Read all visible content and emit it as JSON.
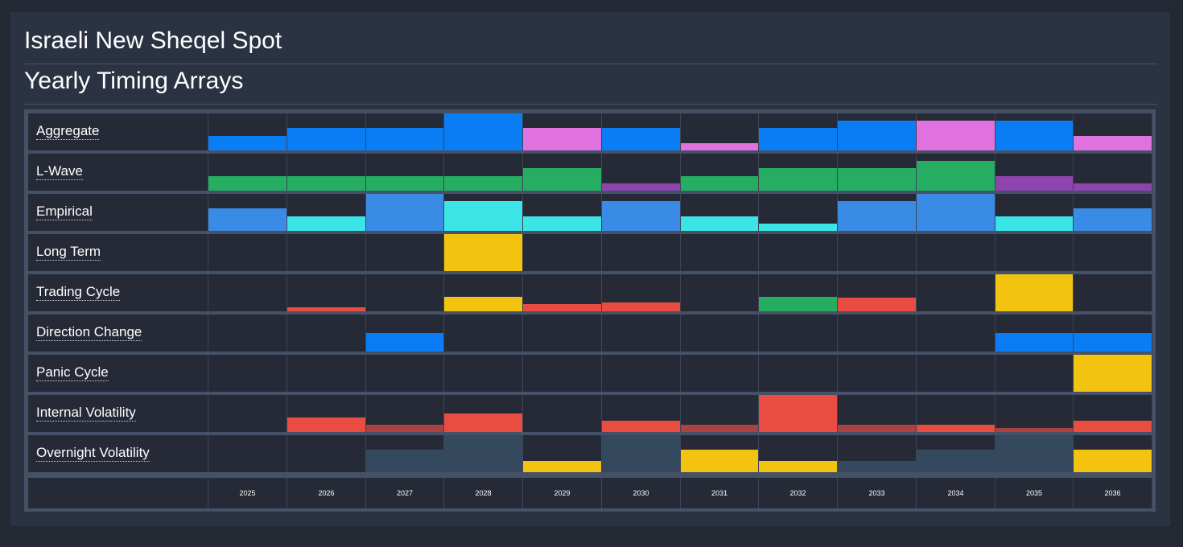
{
  "header": {
    "title": "Israeli New Sheqel Spot",
    "subtitle": "Yearly Timing Arrays"
  },
  "colors": {
    "blue": "#0a7df5",
    "pink": "#df72df",
    "green": "#25ad62",
    "purple": "#8e44ad",
    "mid_blue": "#3a8be5",
    "cyan": "#3ce5e5",
    "yellow": "#f2c30f",
    "red": "#e94c40",
    "dark_red": "#a94240",
    "slate": "#34495e",
    "background": "#252a36"
  },
  "chart_data": {
    "type": "heatmap",
    "title": "Yearly Timing Arrays",
    "x": [
      "2025",
      "2026",
      "2027",
      "2028",
      "2029",
      "2030",
      "2031",
      "2032",
      "2033",
      "2034",
      "2035",
      "2036"
    ],
    "rows": [
      {
        "name": "Aggregate",
        "levels": [
          2,
          3,
          3,
          5,
          3,
          3,
          1,
          3,
          4,
          4,
          4,
          2
        ],
        "colors": [
          "blue",
          "blue",
          "blue",
          "blue",
          "pink",
          "blue",
          "pink",
          "blue",
          "blue",
          "pink",
          "blue",
          "pink"
        ]
      },
      {
        "name": "L-Wave",
        "levels": [
          2,
          2,
          2,
          2,
          3,
          1,
          2,
          3,
          3,
          4,
          2,
          1
        ],
        "colors": [
          "green",
          "green",
          "green",
          "green",
          "green",
          "purple",
          "green",
          "green",
          "green",
          "green",
          "purple",
          "purple"
        ]
      },
      {
        "name": "Empirical",
        "levels": [
          3,
          2,
          5,
          4,
          2,
          4,
          2,
          1,
          4,
          5,
          2,
          3
        ],
        "colors": [
          "mid_blue",
          "cyan",
          "mid_blue",
          "cyan",
          "cyan",
          "mid_blue",
          "cyan",
          "cyan",
          "mid_blue",
          "mid_blue",
          "cyan",
          "mid_blue"
        ]
      },
      {
        "name": "Long Term",
        "levels": [
          0,
          0,
          0,
          5,
          0,
          0,
          0,
          0,
          0,
          0,
          0,
          0
        ],
        "colors": [
          "yellow",
          "yellow",
          "yellow",
          "yellow",
          "yellow",
          "yellow",
          "yellow",
          "yellow",
          "yellow",
          "yellow",
          "yellow",
          "yellow"
        ]
      },
      {
        "name": "Trading Cycle",
        "levels": [
          0,
          0.5,
          0,
          2,
          1,
          1.2,
          0,
          2,
          1.8,
          0,
          5,
          0
        ],
        "colors": [
          "red",
          "red",
          "red",
          "yellow",
          "red",
          "red",
          "red",
          "green",
          "red",
          "red",
          "yellow",
          "red"
        ]
      },
      {
        "name": "Direction Change",
        "levels": [
          0,
          0,
          2.5,
          0,
          0,
          0,
          0,
          0,
          0,
          0,
          2.5,
          2.5
        ],
        "colors": [
          "blue",
          "blue",
          "blue",
          "blue",
          "blue",
          "blue",
          "blue",
          "blue",
          "blue",
          "blue",
          "blue",
          "blue"
        ]
      },
      {
        "name": "Panic Cycle",
        "levels": [
          0,
          0,
          0,
          0,
          0,
          0,
          0,
          0,
          0,
          0,
          0,
          5
        ],
        "colors": [
          "yellow",
          "yellow",
          "yellow",
          "yellow",
          "yellow",
          "yellow",
          "yellow",
          "yellow",
          "yellow",
          "yellow",
          "yellow",
          "yellow"
        ]
      },
      {
        "name": "Internal Volatility",
        "levels": [
          0,
          2,
          1,
          2.5,
          0,
          1.5,
          1,
          5,
          1,
          1,
          0.5,
          1.5
        ],
        "colors": [
          "red",
          "red",
          "dark_red",
          "red",
          "red",
          "red",
          "dark_red",
          "red",
          "dark_red",
          "red",
          "dark_red",
          "red"
        ]
      },
      {
        "name": "Overnight Volatility",
        "levels": [
          0,
          0,
          3,
          5,
          1.5,
          5,
          3,
          1.5,
          1.5,
          3,
          5,
          3
        ],
        "colors": [
          "slate",
          "slate",
          "slate",
          "slate",
          "yellow",
          "slate",
          "yellow",
          "yellow",
          "slate",
          "slate",
          "slate",
          "yellow"
        ]
      }
    ],
    "level_max": 5
  }
}
